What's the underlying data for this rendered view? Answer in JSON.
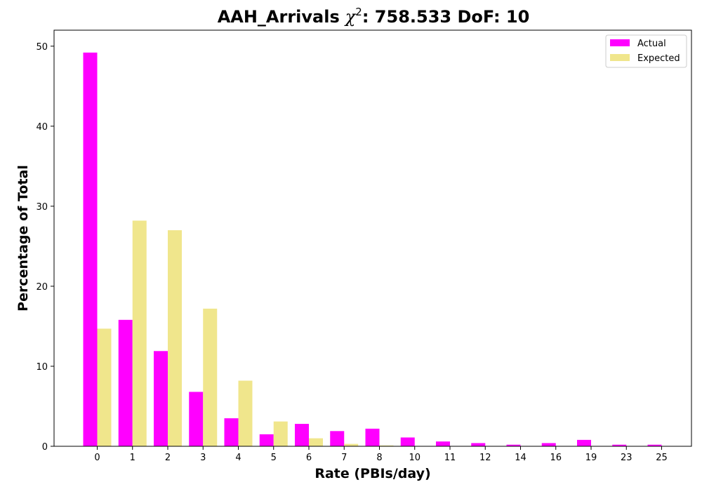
{
  "chart_data": {
    "type": "bar",
    "title": "AAH_Arrivals",
    "title_stat": ": 758.533 DoF: 10",
    "xlabel": "Rate (PBIs/day)",
    "ylabel": "Percentage of Total",
    "categories": [
      "0",
      "1",
      "2",
      "3",
      "4",
      "5",
      "6",
      "7",
      "8",
      "10",
      "11",
      "12",
      "14",
      "16",
      "19",
      "23",
      "25"
    ],
    "series": [
      {
        "name": "Actual",
        "color": "#ff00ff",
        "values": [
          49.2,
          15.8,
          11.9,
          6.8,
          3.5,
          1.5,
          2.8,
          1.9,
          2.2,
          1.1,
          0.6,
          0.4,
          0.2,
          0.4,
          0.8,
          0.2,
          0.2
        ]
      },
      {
        "name": "Expected",
        "color": "#f0e68c",
        "values": [
          14.7,
          28.2,
          27.0,
          17.2,
          8.2,
          3.1,
          1.0,
          0.3,
          0.1,
          0,
          0,
          0,
          0,
          0,
          0,
          0,
          0
        ]
      }
    ],
    "ylim": [
      0,
      52
    ],
    "yticks": [
      0,
      10,
      20,
      30,
      40,
      50
    ],
    "grid": false,
    "legend_position": "top-right"
  }
}
